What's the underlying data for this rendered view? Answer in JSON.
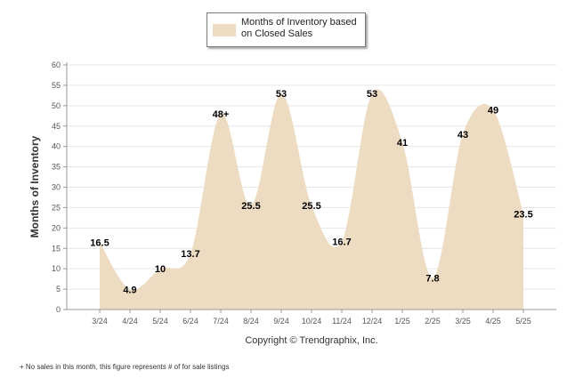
{
  "legend": {
    "label": "Months of Inventory based on Closed Sales",
    "color": "#eddcc2"
  },
  "footer": {
    "copyright": "Copyright © Trendgraphix, Inc.",
    "footnote": "+  No sales in this month, this figure represents # of for sale listings"
  },
  "chart_data": {
    "type": "area",
    "title": "",
    "xlabel": "",
    "ylabel": "Months of Inventory",
    "ylim": [
      0,
      60
    ],
    "yticks": [
      0,
      5,
      10,
      15,
      20,
      25,
      30,
      35,
      40,
      45,
      50,
      55,
      60
    ],
    "grid": true,
    "legend_position": "top-center",
    "categories": [
      "3/24",
      "4/24",
      "5/24",
      "6/24",
      "7/24",
      "8/24",
      "9/24",
      "10/24",
      "11/24",
      "12/24",
      "1/25",
      "2/25",
      "3/25",
      "4/25",
      "5/25"
    ],
    "series": [
      {
        "name": "Months of Inventory based on Closed Sales",
        "values": [
          16.5,
          4.9,
          10,
          13.7,
          48,
          25.5,
          53,
          25.5,
          16.7,
          53,
          41,
          7.8,
          43,
          49,
          23.5
        ],
        "labels": [
          "16.5",
          "4.9",
          "10",
          "13.7",
          "48+",
          "25.5",
          "53",
          "25.5",
          "16.7",
          "53",
          "41",
          "7.8",
          "43",
          "49",
          "23.5"
        ],
        "color": "#eddcc2"
      }
    ]
  }
}
